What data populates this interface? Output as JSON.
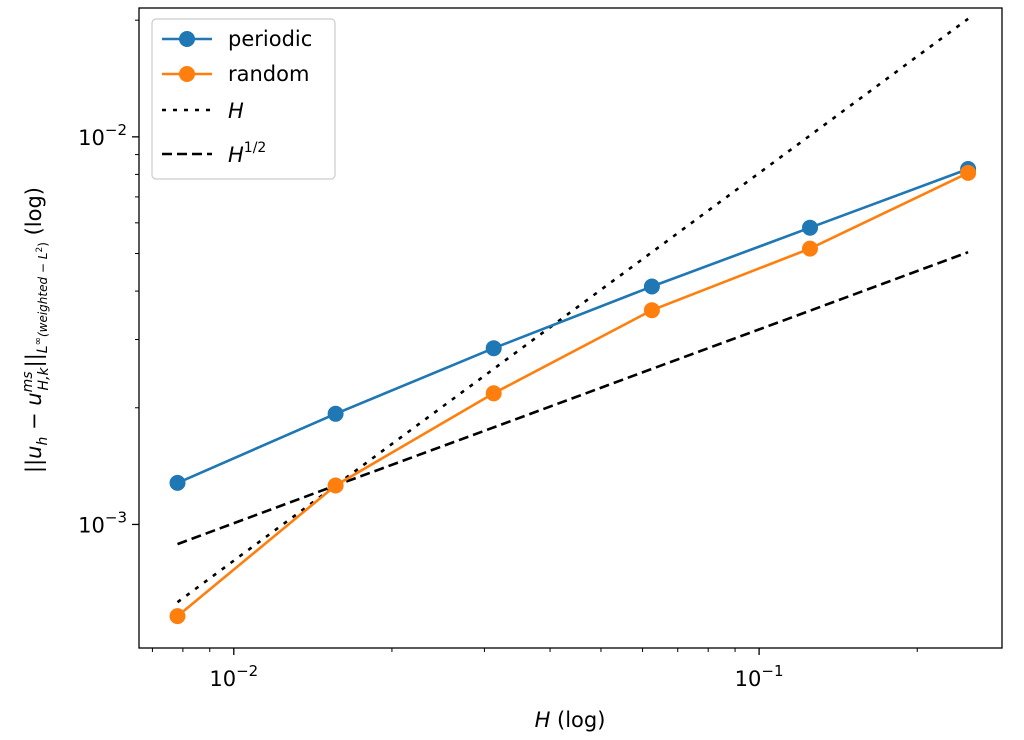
{
  "chart_data": {
    "type": "line",
    "xscale": "log",
    "yscale": "log",
    "xlim": [
      0.0066,
      0.29
    ],
    "ylim": [
      0.00048,
      0.0215
    ],
    "xlabel_base": "H",
    "xlabel_suffix": " (log)",
    "ylabel": "||u_h − u^ms_{H,k}||_{L^∞(weighted − L²)} (log)",
    "x_ticks": [
      {
        "value": 0.01,
        "base": "10",
        "exp": "−2"
      },
      {
        "value": 0.1,
        "base": "10",
        "exp": "−1"
      }
    ],
    "y_ticks": [
      {
        "value": 0.01,
        "base": "10",
        "exp": "−2"
      },
      {
        "value": 0.001,
        "base": "10",
        "exp": "−3"
      }
    ],
    "x": [
      0.0078125,
      0.015625,
      0.03125,
      0.0625,
      0.125,
      0.25
    ],
    "series": [
      {
        "name": "periodic",
        "color": "#1f77b4",
        "style": "solid-marker",
        "values": [
          0.00128,
          0.00193,
          0.00285,
          0.00411,
          0.00583,
          0.00826
        ]
      },
      {
        "name": "random",
        "color": "#ff7f0e",
        "style": "solid-marker",
        "values": [
          0.00058,
          0.00126,
          0.00218,
          0.00357,
          0.00515,
          0.00807
        ]
      },
      {
        "name": "H",
        "color": "#000000",
        "style": "dotted",
        "values": [
          0.00063,
          0.00126,
          0.00252,
          0.00504,
          0.01008,
          0.02016
        ]
      },
      {
        "name": "H^{1/2}",
        "color": "#000000",
        "style": "dashed",
        "values": [
          0.00089,
          0.00126,
          0.00178,
          0.00252,
          0.00356,
          0.00504
        ]
      }
    ],
    "legend_placement": "top-left",
    "grid": false
  }
}
